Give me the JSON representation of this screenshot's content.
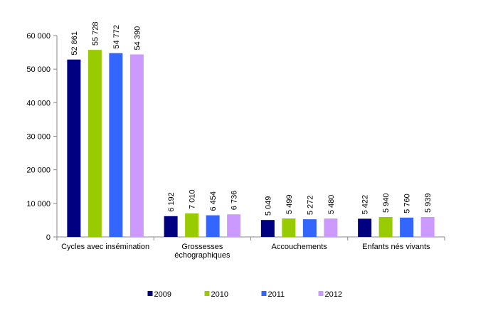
{
  "chart_data": {
    "type": "bar",
    "categories": [
      "Cycles avec insémination",
      "Grossesses\néchographiques",
      "Accouchements",
      "Enfants nés vivants"
    ],
    "series": [
      {
        "name": "2009",
        "color": "#000080",
        "values": [
          52861,
          6192,
          5049,
          5422
        ],
        "value_labels": [
          "52 861",
          "6 192",
          "5 049",
          "5 422"
        ]
      },
      {
        "name": "2010",
        "color": "#99cc00",
        "values": [
          55728,
          7010,
          5499,
          5940
        ],
        "value_labels": [
          "55 728",
          "7 010",
          "5 499",
          "5 940"
        ]
      },
      {
        "name": "2011",
        "color": "#3366ff",
        "values": [
          54772,
          6454,
          5272,
          5760
        ],
        "value_labels": [
          "54 772",
          "6 454",
          "5 272",
          "5 760"
        ]
      },
      {
        "name": "2012",
        "color": "#cc99ff",
        "values": [
          54390,
          6736,
          5480,
          5939
        ],
        "value_labels": [
          "54 390",
          "6 736",
          "5 480",
          "5 939"
        ]
      }
    ],
    "ylim": [
      0,
      60000
    ],
    "yticks": [
      {
        "value": 0,
        "label": "0"
      },
      {
        "value": 10000,
        "label": "10 000"
      },
      {
        "value": 20000,
        "label": "20 000"
      },
      {
        "value": 30000,
        "label": "30 000"
      },
      {
        "value": 40000,
        "label": "40 000"
      },
      {
        "value": 50000,
        "label": "50 000"
      },
      {
        "value": 60000,
        "label": "60 000"
      }
    ],
    "grid": false,
    "legend": "bottom"
  }
}
